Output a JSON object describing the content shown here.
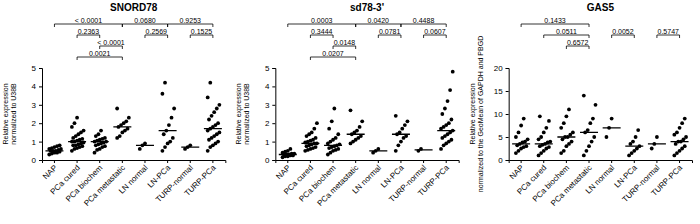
{
  "chart_data": [
    {
      "type": "scatter",
      "title": "SNORD78",
      "ylabel": [
        "Relative expression",
        "normalized to U38B"
      ],
      "categories": [
        "NAP",
        "PCa cured",
        "PCa biochem",
        "PCa metastatic",
        "LN normal",
        "LN-PCa",
        "TURP-normal",
        "TURP-PCa"
      ],
      "values": [
        [
          0.3,
          0.35,
          0.4,
          0.4,
          0.45,
          0.5,
          0.5,
          0.5,
          0.55,
          0.6,
          0.6,
          0.65,
          0.7,
          0.75,
          0.8
        ],
        [
          0.5,
          0.6,
          0.65,
          0.7,
          0.75,
          0.8,
          0.8,
          0.85,
          0.9,
          0.95,
          1.0,
          1.0,
          1.05,
          1.1,
          1.15,
          1.2,
          1.3,
          1.4,
          1.5,
          1.6,
          1.8,
          2.0,
          2.3
        ],
        [
          0.4,
          0.55,
          0.6,
          0.7,
          0.75,
          0.8,
          0.85,
          0.9,
          0.95,
          1.0,
          1.0,
          1.05,
          1.1,
          1.15,
          1.2,
          1.3,
          1.4,
          1.6
        ],
        [
          1.2,
          1.3,
          1.5,
          1.6,
          1.7,
          1.8,
          1.9,
          2.0,
          2.1,
          2.3,
          2.8
        ],
        [
          0.6,
          0.8,
          0.9
        ],
        [
          0.5,
          0.7,
          0.9,
          1.0,
          1.2,
          1.4,
          1.6,
          1.9,
          2.3,
          2.8,
          3.6,
          4.2
        ],
        [
          0.6,
          0.7,
          0.8
        ],
        [
          0.5,
          0.7,
          0.8,
          0.9,
          1.0,
          1.1,
          1.2,
          1.3,
          1.4,
          1.5,
          1.6,
          1.7,
          1.8,
          1.9,
          2.0,
          2.2,
          2.4,
          2.6,
          2.8,
          3.0,
          3.4,
          4.2
        ]
      ],
      "medians": [
        0.5,
        1.0,
        1.0,
        1.8,
        0.8,
        1.6,
        0.7,
        1.7
      ],
      "ylim": [
        0,
        5
      ],
      "yticks": [
        0,
        1,
        2,
        3,
        4,
        5
      ],
      "color": "#000000",
      "brackets": [
        {
          "label": "< 0.0001",
          "between": [
            "NAP",
            "PCa metastatic"
          ]
        },
        {
          "label": "0.0680",
          "between": [
            "PCa metastatic",
            "LN-PCa"
          ]
        },
        {
          "label": "0.9253",
          "between": [
            "LN-PCa",
            "TURP-PCa"
          ]
        },
        {
          "label": "0.2363",
          "between": [
            "PCa cured",
            "PCa biochem"
          ]
        },
        {
          "label": "< 0.0001",
          "between": [
            "PCa biochem",
            "PCa metastatic"
          ]
        },
        {
          "label": "0.0021",
          "between": [
            "PCa cured",
            "PCa metastatic"
          ]
        },
        {
          "label": "0.2569",
          "between": [
            "LN normal",
            "LN-PCa"
          ]
        },
        {
          "label": "0.1525",
          "between": [
            "TURP-normal",
            "TURP-PCa"
          ]
        }
      ]
    },
    {
      "type": "scatter",
      "title": "sd78-3'",
      "ylabel": [
        "Relative expression",
        "normalized to U38B"
      ],
      "categories": [
        "NAP",
        "PCa cured",
        "PCa biochem",
        "PCa metastatic",
        "LN normal",
        "LN-PCa",
        "TURP-normal",
        "TURP-PCa"
      ],
      "values": [
        [
          0.15,
          0.2,
          0.2,
          0.25,
          0.25,
          0.3,
          0.3,
          0.3,
          0.35,
          0.35,
          0.4,
          0.45,
          0.5,
          0.6
        ],
        [
          0.5,
          0.55,
          0.6,
          0.65,
          0.7,
          0.75,
          0.8,
          0.85,
          0.9,
          0.9,
          0.95,
          1.0,
          1.05,
          1.1,
          1.2,
          1.3,
          1.4,
          1.5,
          1.7,
          2.0
        ],
        [
          0.3,
          0.4,
          0.5,
          0.55,
          0.6,
          0.65,
          0.7,
          0.75,
          0.8,
          0.85,
          0.9,
          1.0,
          1.1,
          1.2,
          1.4,
          1.7,
          2.1,
          2.8
        ],
        [
          0.9,
          1.0,
          1.1,
          1.2,
          1.3,
          1.4,
          1.5,
          1.6,
          1.8,
          2.1,
          2.7
        ],
        [
          0.4,
          0.5,
          0.6
        ],
        [
          0.5,
          0.8,
          1.0,
          1.2,
          1.3,
          1.4,
          1.5,
          1.7,
          1.9,
          2.1,
          2.4
        ],
        [
          0.5,
          0.6
        ],
        [
          0.6,
          0.8,
          0.9,
          1.0,
          1.1,
          1.2,
          1.3,
          1.4,
          1.5,
          1.6,
          1.7,
          1.8,
          1.9,
          2.0,
          2.2,
          2.5,
          2.8,
          3.2,
          3.8,
          4.8
        ]
      ],
      "medians": [
        0.3,
        0.9,
        0.8,
        1.4,
        0.5,
        1.4,
        0.55,
        1.6
      ],
      "ylim": [
        0,
        5
      ],
      "yticks": [
        0,
        1,
        2,
        3,
        4,
        5
      ],
      "color": "#000000",
      "brackets": [
        {
          "label": "0.0003",
          "between": [
            "NAP",
            "PCa metastatic"
          ]
        },
        {
          "label": "0.0420",
          "between": [
            "PCa metastatic",
            "LN-PCa"
          ]
        },
        {
          "label": "0.4488",
          "between": [
            "LN-PCa",
            "TURP-PCa"
          ]
        },
        {
          "label": "0.3444",
          "between": [
            "PCa cured",
            "PCa biochem"
          ]
        },
        {
          "label": "0.0148",
          "between": [
            "PCa biochem",
            "PCa metastatic"
          ]
        },
        {
          "label": "0.0207",
          "between": [
            "PCa cured",
            "PCa metastatic"
          ]
        },
        {
          "label": "0.0781",
          "between": [
            "LN normal",
            "LN-PCa"
          ]
        },
        {
          "label": "0.0607",
          "between": [
            "TURP-normal",
            "TURP-PCa"
          ]
        }
      ]
    },
    {
      "type": "scatter",
      "title": "GAS5",
      "ylabel": [
        "Relative expression",
        "normalized to the GeoMean of GAPDH and PBGD"
      ],
      "categories": [
        "NAP",
        "PCa cured",
        "PCa biochem",
        "PCa metastatic",
        "LN normal",
        "LN-PCa",
        "TURP-normal",
        "TURP-PCa"
      ],
      "values": [
        [
          1.5,
          2.0,
          2.5,
          2.8,
          3.0,
          3.2,
          3.5,
          3.8,
          4.0,
          4.5,
          5.0,
          6.0,
          7.5,
          9.0
        ],
        [
          1.0,
          1.5,
          2.0,
          2.5,
          2.8,
          3.0,
          3.3,
          3.5,
          3.8,
          4.0,
          4.5,
          5.0,
          6.0,
          7.0,
          8.5,
          9.5
        ],
        [
          1.5,
          2.0,
          3.0,
          3.5,
          4.0,
          4.5,
          5.0,
          5.0,
          5.5,
          6.0,
          7.0,
          8.0,
          9.5,
          11.0
        ],
        [
          1.0,
          2.0,
          3.0,
          4.0,
          5.0,
          6.0,
          6.5,
          8.0,
          9.0,
          12.0,
          14.0
        ],
        [
          5.0,
          7.0,
          9.0
        ],
        [
          1.0,
          1.5,
          2.0,
          2.5,
          3.0,
          3.5,
          4.0,
          5.0,
          6.5
        ],
        [
          2.5,
          3.5,
          5.0
        ],
        [
          1.0,
          1.5,
          2.0,
          2.5,
          3.0,
          3.5,
          4.0,
          4.0,
          4.5,
          5.0,
          5.5,
          6.0,
          7.0,
          8.0,
          9.0
        ]
      ],
      "medians": [
        3.5,
        3.5,
        5.0,
        6.0,
        7.0,
        3.0,
        3.5,
        4.0
      ],
      "ylim": [
        0,
        20
      ],
      "yticks": [
        0,
        5,
        10,
        15,
        20
      ],
      "color": "#000000",
      "brackets": [
        {
          "label": "0.1433",
          "between": [
            "NAP",
            "PCa metastatic"
          ]
        },
        {
          "label": "0.0511",
          "between": [
            "PCa cured",
            "PCa metastatic"
          ]
        },
        {
          "label": "0.6572",
          "between": [
            "PCa biochem",
            "PCa metastatic"
          ]
        },
        {
          "label": "0.0052",
          "between": [
            "LN normal",
            "LN-PCa"
          ]
        },
        {
          "label": "0.5747",
          "between": [
            "TURP-normal",
            "TURP-PCa"
          ]
        }
      ]
    }
  ]
}
